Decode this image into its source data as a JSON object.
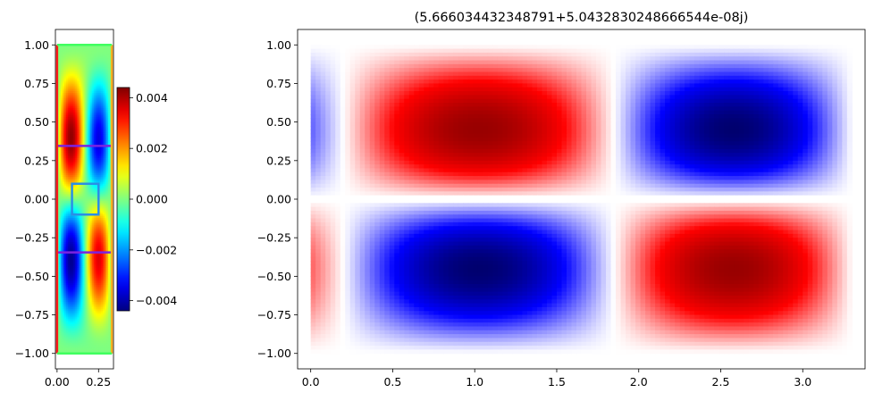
{
  "chart_data": [
    {
      "type": "heatmap",
      "title": "",
      "xlabel": "",
      "ylabel": "",
      "colormap": "jet",
      "xlim": [
        -0.01,
        0.34
      ],
      "ylim": [
        -1.1,
        1.1
      ],
      "x_ticks": [
        0.0,
        0.25
      ],
      "x_tick_labels": [
        "0.00",
        "0.25"
      ],
      "y_ticks": [
        1.0,
        0.75,
        0.5,
        0.25,
        0.0,
        -0.25,
        -0.5,
        -0.75,
        -1.0
      ],
      "y_tick_labels": [
        "1.00",
        "0.75",
        "0.50",
        "0.25",
        "0.00",
        "−0.25",
        "−0.50",
        "−0.75",
        "−1.00"
      ],
      "colorbar": {
        "range": [
          -0.0044,
          0.0044
        ],
        "ticks": [
          0.004,
          0.002,
          0.0,
          -0.002,
          -0.004
        ],
        "tick_labels": [
          "0.004",
          "0.002",
          "0.000",
          "−0.002",
          "−0.004"
        ]
      },
      "overlays": [
        {
          "kind": "hline",
          "y": 0.345,
          "x": [
            0.0,
            0.33
          ],
          "color": "#7b22e0"
        },
        {
          "kind": "hline",
          "y": -0.345,
          "x": [
            0.0,
            0.33
          ],
          "color": "#7b22e0"
        },
        {
          "kind": "rect",
          "x": [
            0.09,
            0.25
          ],
          "y": [
            -0.1,
            0.1
          ],
          "color": "#2a8ee6"
        },
        {
          "kind": "vline",
          "x": 0.0,
          "y": [
            -1.0,
            1.0
          ],
          "color": "#ff1a1a"
        },
        {
          "kind": "vline",
          "x": 0.33,
          "y": [
            -1.0,
            1.0
          ],
          "color": "#ffb020"
        },
        {
          "kind": "hline",
          "y": 1.0,
          "x": [
            0.0,
            0.33
          ],
          "color": "#40ff60"
        },
        {
          "kind": "hline",
          "y": -1.0,
          "x": [
            0.0,
            0.33
          ],
          "color": "#40ff60"
        }
      ]
    },
    {
      "type": "heatmap",
      "title": "(5.666034432348791+5.0432830248666544e-08j)",
      "xlabel": "",
      "ylabel": "",
      "colormap": "seismic",
      "xlim": [
        -0.08,
        3.38
      ],
      "ylim": [
        -1.1,
        1.1
      ],
      "x_ticks": [
        0.0,
        0.5,
        1.0,
        1.5,
        2.0,
        2.5,
        3.0
      ],
      "x_tick_labels": [
        "0.0",
        "0.5",
        "1.0",
        "1.5",
        "2.0",
        "2.5",
        "3.0"
      ],
      "y_ticks": [
        1.0,
        0.75,
        0.5,
        0.25,
        0.0,
        -0.25,
        -0.5,
        -0.75,
        -1.0
      ],
      "y_tick_labels": [
        "1.00",
        "0.75",
        "0.50",
        "0.25",
        "0.00",
        "−0.25",
        "−0.50",
        "−0.75",
        "−1.00"
      ],
      "data_extent": {
        "x": [
          0.0,
          3.3
        ],
        "y": [
          -1.0,
          1.0
        ]
      },
      "features": [
        {
          "sign": "positive",
          "center": [
            1.0,
            0.28
          ]
        },
        {
          "sign": "negative",
          "center": [
            2.65,
            0.28
          ]
        },
        {
          "sign": "negative",
          "center": [
            1.0,
            -0.28
          ]
        },
        {
          "sign": "positive",
          "center": [
            2.65,
            -0.28
          ]
        }
      ]
    }
  ]
}
